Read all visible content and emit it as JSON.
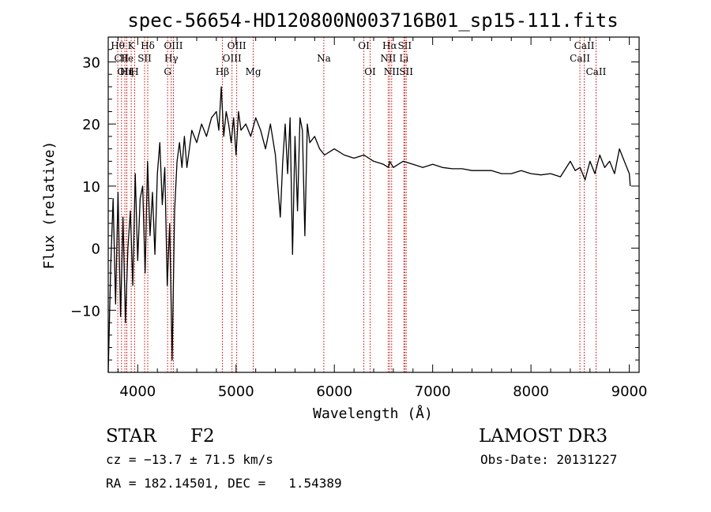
{
  "chart_data": {
    "type": "line",
    "title": "spec-56654-HD120800N003716B01_sp15-111.fits",
    "xlabel": "Wavelength (Å)",
    "ylabel": "Flux (relative)",
    "xlim": [
      3700,
      9100
    ],
    "ylim": [
      -20,
      34
    ],
    "x_ticks": [
      4000,
      5000,
      6000,
      7000,
      8000,
      9000
    ],
    "x_tick_labels": [
      "4000",
      "5000",
      "6000",
      "7000",
      "8000",
      "9000"
    ],
    "y_ticks": [
      -10,
      0,
      10,
      20,
      30
    ],
    "y_tick_labels": [
      "−10",
      "0",
      "10",
      "20",
      "30"
    ],
    "line_color": "#000000",
    "marker_color": "#cc0000",
    "series": [
      {
        "name": "flux",
        "x": [
          3700,
          3725,
          3750,
          3775,
          3800,
          3825,
          3850,
          3875,
          3900,
          3925,
          3950,
          3975,
          4000,
          4025,
          4050,
          4075,
          4100,
          4125,
          4150,
          4175,
          4200,
          4225,
          4250,
          4275,
          4300,
          4325,
          4350,
          4375,
          4400,
          4425,
          4450,
          4475,
          4500,
          4550,
          4600,
          4650,
          4700,
          4750,
          4800,
          4825,
          4850,
          4875,
          4900,
          4925,
          4950,
          4975,
          5000,
          5025,
          5050,
          5100,
          5150,
          5200,
          5250,
          5300,
          5350,
          5400,
          5450,
          5475,
          5500,
          5525,
          5550,
          5575,
          5600,
          5625,
          5650,
          5675,
          5700,
          5725,
          5750,
          5800,
          5850,
          5900,
          5950,
          6000,
          6100,
          6200,
          6300,
          6400,
          6500,
          6550,
          6563,
          6600,
          6700,
          6800,
          6900,
          7000,
          7100,
          7200,
          7300,
          7400,
          7500,
          7600,
          7700,
          7800,
          7900,
          8000,
          8100,
          8200,
          8300,
          8400,
          8450,
          8500,
          8550,
          8600,
          8650,
          8700,
          8750,
          8800,
          8850,
          8900,
          8950,
          9000,
          9010
        ],
        "y": [
          -20,
          -3,
          8,
          -9,
          9,
          -11,
          5,
          -12,
          0,
          6,
          -6,
          12,
          -2,
          8,
          10,
          -4,
          14,
          2,
          9,
          -1,
          12,
          17,
          7,
          13,
          -6,
          4,
          -18,
          6,
          14,
          17,
          13,
          18,
          13,
          19,
          17,
          20,
          18,
          21,
          22,
          19,
          26,
          18,
          22,
          20,
          17,
          21,
          15,
          22,
          19,
          20,
          18,
          21,
          19,
          16,
          20,
          15,
          5,
          14,
          20,
          12,
          21,
          -1,
          18,
          6,
          21,
          19,
          2,
          20,
          17,
          18,
          16,
          15,
          15.5,
          16,
          15,
          14.5,
          15,
          14,
          13.5,
          13,
          14,
          13,
          14,
          13.5,
          13,
          13.5,
          13,
          12.8,
          12.8,
          12.5,
          12.5,
          12.5,
          12,
          12,
          12.5,
          12,
          11.8,
          12,
          11.5,
          14,
          12.5,
          13,
          11,
          14,
          12,
          15,
          13,
          14,
          12,
          16,
          14,
          12,
          10
        ]
      }
    ],
    "lines": [
      {
        "label": "Hθ",
        "x": 3797,
        "row": 1
      },
      {
        "label": "CII",
        "x": 3835,
        "row": 2
      },
      {
        "label": "OII",
        "x": 3869,
        "row": 3
      },
      {
        "label": "Hε",
        "x": 3889,
        "row": 3
      },
      {
        "label": "He",
        "x": 3888,
        "row": 2
      },
      {
        "label": "Hη",
        "x": 3889,
        "row": 3
      },
      {
        "label": "K",
        "x": 3934,
        "row": 1
      },
      {
        "label": "H",
        "x": 3969,
        "row": 3
      },
      {
        "label": "SII",
        "x": 4070,
        "row": 2
      },
      {
        "label": "Hδ",
        "x": 4102,
        "row": 1
      },
      {
        "label": "OIII",
        "x": 4363,
        "row": 1
      },
      {
        "label": "Hγ",
        "x": 4341,
        "row": 2
      },
      {
        "label": "G",
        "x": 4304,
        "row": 3
      },
      {
        "label": "Hβ",
        "x": 4861,
        "row": 3
      },
      {
        "label": "OIII",
        "x": 5007,
        "row": 1
      },
      {
        "label": "OIII",
        "x": 4959,
        "row": 2
      },
      {
        "label": "Mg",
        "x": 5175,
        "row": 3
      },
      {
        "label": "Na",
        "x": 5893,
        "row": 2
      },
      {
        "label": "OI",
        "x": 6300,
        "row": 1
      },
      {
        "label": "OI",
        "x": 6364,
        "row": 3
      },
      {
        "label": "Hα",
        "x": 6563,
        "row": 1
      },
      {
        "label": "NII",
        "x": 6548,
        "row": 2
      },
      {
        "label": "NII",
        "x": 6583,
        "row": 3
      },
      {
        "label": "SII",
        "x": 6716,
        "row": 1
      },
      {
        "label": "Li",
        "x": 6708,
        "row": 2
      },
      {
        "label": "SII",
        "x": 6731,
        "row": 3
      },
      {
        "label": "CaII",
        "x": 8542,
        "row": 1
      },
      {
        "label": "CaII",
        "x": 8498,
        "row": 2
      },
      {
        "label": "CaII",
        "x": 8662,
        "row": 3
      }
    ]
  },
  "footer": {
    "object_class": "STAR",
    "subclass": "F2",
    "survey": "LAMOST DR3",
    "cz": "cz = −13.7 ± 71.5 km/s",
    "obs_date": "Obs-Date: 20131227",
    "coords": "RA = 182.14501, DEC =   1.54389"
  }
}
